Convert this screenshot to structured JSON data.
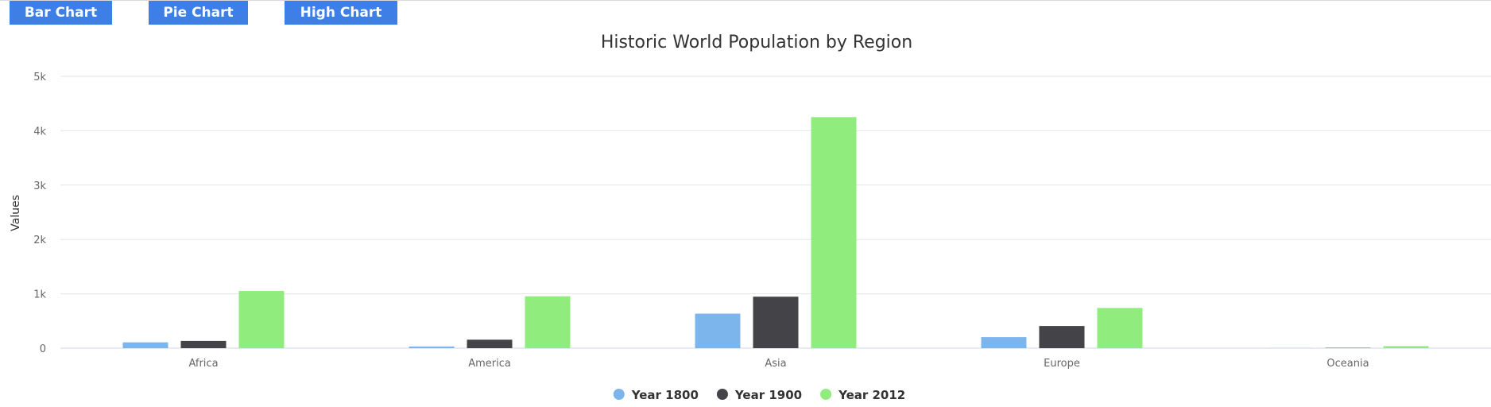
{
  "toolbar": {
    "bar_label": "Bar Chart",
    "pie_label": "Pie Chart",
    "high_label": "High Chart"
  },
  "chart_data": {
    "type": "bar",
    "title": "Historic World Population by Region",
    "ylabel": "Values",
    "xlabel": "",
    "ylim": [
      0,
      5000
    ],
    "yticks": [
      "0",
      "1k",
      "2k",
      "3k",
      "4k",
      "5k"
    ],
    "categories": [
      "Africa",
      "America",
      "Asia",
      "Europe",
      "Oceania"
    ],
    "series": [
      {
        "name": "Year 1800",
        "color": "#7cb5ec",
        "values": [
          107,
          31,
          635,
          203,
          2
        ]
      },
      {
        "name": "Year 1900",
        "color": "#434348",
        "values": [
          133,
          156,
          947,
          408,
          6
        ]
      },
      {
        "name": "Year 2012",
        "color": "#90ed7d",
        "values": [
          1052,
          954,
          4250,
          740,
          38
        ]
      }
    ],
    "grid": true,
    "legend_position": "bottom"
  }
}
